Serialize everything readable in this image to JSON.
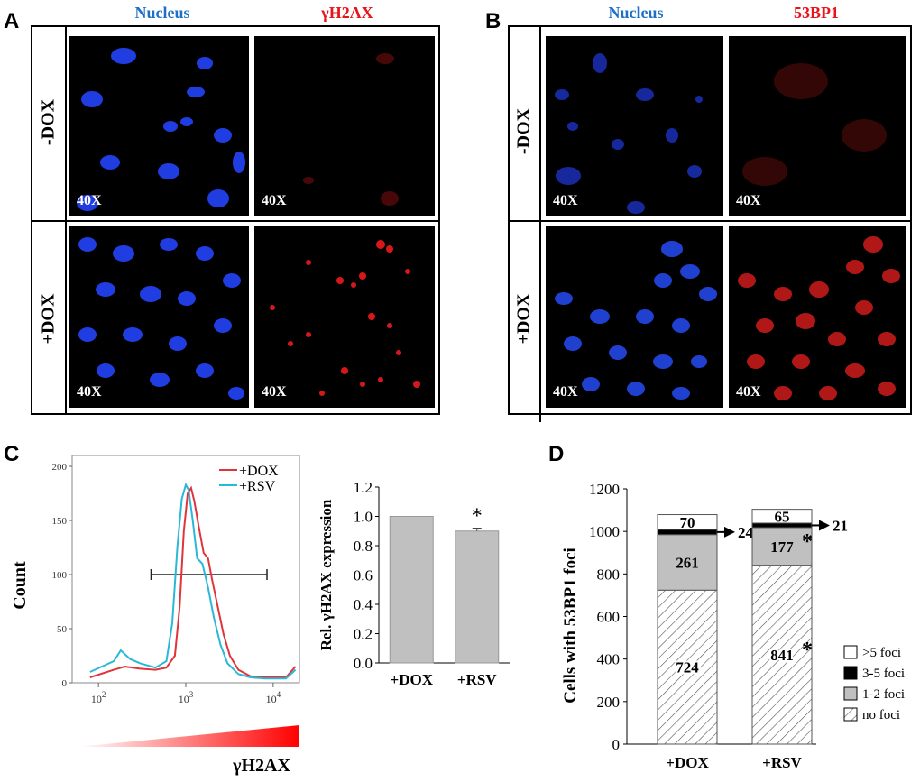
{
  "panel_a": {
    "letter": "A",
    "header_nucleus": "Nucleus",
    "header_marker": "γH2AX",
    "rows": [
      {
        "label": "-DOX",
        "mag_left": "40X",
        "mag_right": "40X"
      },
      {
        "label": "+DOX",
        "mag_left": "40X",
        "mag_right": "40X"
      }
    ]
  },
  "panel_b": {
    "letter": "B",
    "header_nucleus": "Nucleus",
    "header_marker": "53BP1",
    "rows": [
      {
        "label": "-DOX",
        "mag_left": "40X",
        "mag_right": "40X"
      },
      {
        "label": "+DOX",
        "mag_left": "40X",
        "mag_right": "40X"
      }
    ]
  },
  "colors": {
    "nucleus_blue": "#1f6fc4",
    "marker_red": "#e8141a",
    "dox_line": "#e0343a",
    "rsv_line": "#2ab8d8",
    "bar_gray": "#c0c0c0"
  },
  "panel_c": {
    "letter": "C",
    "xaxis_label": "γH2AX",
    "gradient_colors": [
      "#ffffff",
      "#ff0000"
    ]
  },
  "panel_d": {
    "letter": "D"
  },
  "chart_data": [
    {
      "type": "line",
      "title": "",
      "xlabel": "",
      "ylabel": "Count",
      "xscale": "log",
      "xlim": [
        50,
        20000
      ],
      "ylim": [
        0,
        210
      ],
      "x_ticks": [
        "10^2",
        "10^3",
        "10^4"
      ],
      "y_ticks": [
        0,
        50,
        100,
        150,
        200
      ],
      "legend": [
        "+DOX",
        "+RSV"
      ],
      "gate": {
        "x_from": 400,
        "x_to": 8500,
        "y": 100
      },
      "series": [
        {
          "name": "+DOX",
          "x": [
            80,
            150,
            200,
            300,
            450,
            600,
            750,
            850,
            950,
            1050,
            1150,
            1250,
            1400,
            1600,
            1800,
            2000,
            2300,
            2700,
            3200,
            4000,
            5500,
            8000,
            14000,
            18000
          ],
          "y": [
            5,
            12,
            15,
            13,
            12,
            14,
            25,
            70,
            140,
            175,
            180,
            168,
            145,
            120,
            115,
            95,
            72,
            45,
            25,
            12,
            6,
            5,
            5,
            15
          ]
        },
        {
          "name": "+RSV",
          "x": [
            80,
            150,
            180,
            230,
            300,
            450,
            600,
            700,
            800,
            900,
            1000,
            1080,
            1200,
            1350,
            1550,
            1800,
            2100,
            2500,
            3000,
            4000,
            5500,
            8000,
            14000,
            18000
          ],
          "y": [
            10,
            20,
            30,
            22,
            18,
            14,
            20,
            55,
            125,
            170,
            183,
            178,
            150,
            115,
            110,
            88,
            60,
            35,
            18,
            8,
            5,
            4,
            4,
            12
          ]
        }
      ]
    },
    {
      "type": "bar",
      "title": "",
      "xlabel": "",
      "ylabel": "Rel. γH2AX expression",
      "categories": [
        "+DOX",
        "+RSV"
      ],
      "values": [
        1.0,
        0.9
      ],
      "errors": [
        0,
        0.02
      ],
      "annotations": [
        "",
        "*"
      ],
      "ylim": [
        0,
        1.2
      ],
      "y_ticks": [
        "0.0",
        "0.2",
        "0.4",
        "0.6",
        "0.8",
        "1.0",
        "1.2"
      ]
    },
    {
      "type": "bar",
      "stacked": true,
      "title": "",
      "xlabel": "",
      "ylabel": "Cells with 53BP1 foci",
      "categories": [
        "+DOX",
        "+RSV"
      ],
      "ylim": [
        0,
        1200
      ],
      "y_ticks": [
        0,
        200,
        400,
        600,
        800,
        1000,
        1200
      ],
      "series": [
        {
          "name": "no foci",
          "values": [
            724,
            841
          ],
          "labels": [
            "724",
            "841"
          ],
          "stars": [
            "",
            "*"
          ]
        },
        {
          "name": "1-2 foci",
          "values": [
            261,
            177
          ],
          "labels": [
            "261",
            "177"
          ],
          "stars": [
            "",
            "*"
          ]
        },
        {
          "name": "3-5 foci",
          "values": [
            24,
            21
          ],
          "labels": [
            "24",
            "21"
          ],
          "stars": [
            "",
            ""
          ]
        },
        {
          "name": ">5 foci",
          "values": [
            70,
            65
          ],
          "labels": [
            "70",
            "65"
          ],
          "stars": [
            "",
            ""
          ]
        }
      ],
      "legend": [
        ">5 foci",
        "3-5 foci",
        "1-2 foci",
        "no foci"
      ]
    }
  ]
}
